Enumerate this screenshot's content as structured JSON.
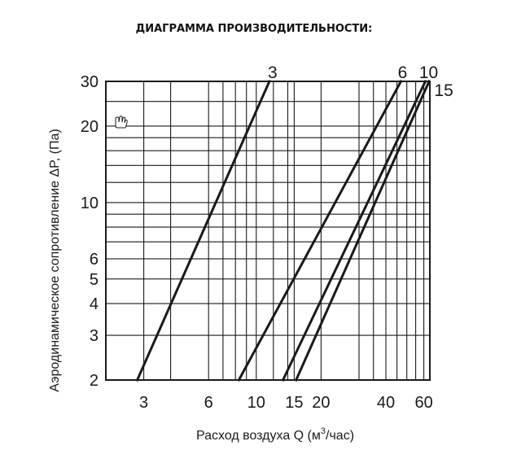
{
  "page_title": "ДИАГРАММА ПРОИЗВОДИТЕЛЬНОСТИ:",
  "chart_data": {
    "type": "line",
    "x_scale": "log",
    "y_scale": "log",
    "xlabel": {
      "main": "Расход воздуха Q (м",
      "sup": "3",
      "end": "/час)"
    },
    "ylabel": "Аэродинамическое сопротивление ΔP, (Па)",
    "xlim": [
      2,
      64
    ],
    "ylim": [
      2,
      30
    ],
    "grid": true,
    "x_ticks": [
      {
        "value": 3,
        "label": "3"
      },
      {
        "value": 6,
        "label": "6"
      },
      {
        "value": 10,
        "label": "10"
      },
      {
        "value": 15,
        "label": "15"
      },
      {
        "value": 20,
        "label": "20"
      },
      {
        "value": 40,
        "label": "40"
      },
      {
        "value": 60,
        "label": "60"
      }
    ],
    "y_ticks": [
      {
        "value": 2,
        "label": "2"
      },
      {
        "value": 3,
        "label": "3"
      },
      {
        "value": 4,
        "label": "4"
      },
      {
        "value": 5,
        "label": "5"
      },
      {
        "value": 6,
        "label": "6"
      },
      {
        "value": 10,
        "label": "10"
      },
      {
        "value": 20,
        "label": "20"
      },
      {
        "value": 30,
        "label": "30"
      }
    ],
    "x_gridlines": [
      3,
      4,
      6,
      7,
      8,
      9,
      10,
      12,
      14,
      15,
      20,
      30,
      35,
      40,
      45,
      50,
      55,
      60,
      64
    ],
    "y_gridlines": [
      2,
      3,
      4,
      5,
      6,
      7,
      8,
      9,
      10,
      12,
      14,
      16,
      18,
      20,
      25,
      30
    ],
    "series": [
      {
        "name": "3",
        "points": [
          [
            2.8,
            2
          ],
          [
            11.5,
            30
          ]
        ]
      },
      {
        "name": "6",
        "points": [
          [
            8.3,
            2
          ],
          [
            47,
            30
          ]
        ]
      },
      {
        "name": "10",
        "points": [
          [
            13.3,
            2
          ],
          [
            61,
            30
          ]
        ]
      },
      {
        "name": "15",
        "points": [
          [
            15.3,
            2
          ],
          [
            63.5,
            30
          ]
        ]
      }
    ]
  }
}
